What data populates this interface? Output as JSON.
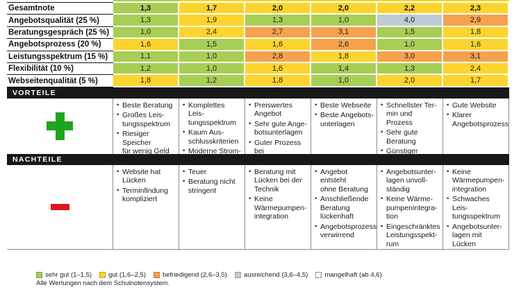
{
  "chart_data": {
    "type": "table",
    "title": "",
    "notes": "Anbieter-Vergleichstabelle mit Schulnoten; 6 Anbieter-Spalten ohne sichtbare Spaltennamen",
    "rows": [
      {
        "label": "Gesamtnote",
        "bold": true,
        "values": [
          "1,3",
          "1,7",
          "2,0",
          "2,0",
          "2,2",
          "2,3"
        ]
      },
      {
        "label": "Angebotsqualität (25 %)",
        "bold": false,
        "values": [
          "1,3",
          "1,9",
          "1,3",
          "1,0",
          "4,0",
          "2,9"
        ]
      },
      {
        "label": "Beratungsgespräch (25 %)",
        "bold": false,
        "values": [
          "1,0",
          "2,4",
          "2,7",
          "3,1",
          "1,5",
          "1,8"
        ]
      },
      {
        "label": "Angebotsprozess (20 %)",
        "bold": false,
        "values": [
          "1,6",
          "1,5",
          "1,6",
          "2,6",
          "1,0",
          "1,6"
        ]
      },
      {
        "label": "Leistungsspektrum (15 %)",
        "bold": false,
        "values": [
          "1,1",
          "1,0",
          "2,8",
          "1,8",
          "3,0",
          "3,1"
        ]
      },
      {
        "label": "Flexibilität (10 %)",
        "bold": false,
        "values": [
          "1,2",
          "1,0",
          "1,6",
          "1,4",
          "1,3",
          "2,4"
        ]
      },
      {
        "label": "Webseitenqualität (5 %)",
        "bold": false,
        "values": [
          "1,8",
          "1,2",
          "1,8",
          "1,0",
          "2,0",
          "1,7"
        ]
      }
    ],
    "sections": {
      "vorteile": {
        "title": "VORTEILE",
        "sign": "plus",
        "columns": [
          [
            "Beste Beratung",
            "Großes Leis-\ntungsspektrum",
            "Riesiger Speicher\nfür wenig Geld"
          ],
          [
            "Komplettes Leis-\ntungsspektrum",
            "Kaum Aus-\nschlusskriterien",
            "Moderne Strom-\nvermarktung"
          ],
          [
            "Preiswertes\nAngebot",
            "Sehr gute Ange-\nbotsunterlagen",
            "Guter Prozess bei\nder Beratung"
          ],
          [
            "Beste Webseite",
            "Beste Angebots-\nunterlagen"
          ],
          [
            "Schnellster Ter-\nmin und Prozess",
            "Sehr gute\nBeratung",
            "Günstiger\nAnlagenpreis"
          ],
          [
            "Gute Website",
            "Klarer\nAngebotsprozess"
          ]
        ]
      },
      "nachteile": {
        "title": "NACHTEILE",
        "sign": "minus",
        "columns": [
          [
            "Website hat\nLücken",
            "Terminfindung\nkompliziert"
          ],
          [
            "Teuer",
            "Beratung nicht\nstringent"
          ],
          [
            "Beratung mit\nLücken bei der\nTechnik",
            "Keine\nWärmepumpen-\nintegration"
          ],
          [
            "Angebot entsteht\nohne Beratung",
            "Anschließende\nBeratung\nlückenhaft",
            "Angebotsprozess\nverwirrend"
          ],
          [
            "Angebotsunter-\nlagen unvoll-\nständig",
            "Keine Wärme-\npumpenintegra-\ntion",
            "Eingeschränktes\nLeistungsspekt-\nrum"
          ],
          [
            "Keine\nWärmepumpen-\nintegration",
            "Schwaches Leis-\ntungsspektrum",
            "Angebotsunter-\nlagen mit Lücken"
          ]
        ]
      }
    },
    "legend": {
      "items": [
        {
          "label": "sehr gut (1–1,5)",
          "color": "#a7ce55",
          "swatch_border": "#7ba03a",
          "max": 1.5
        },
        {
          "label": "gut (1,6–2,5)",
          "color": "#fbd42e",
          "swatch_border": "#c4a41f",
          "max": 2.5
        },
        {
          "label": "befriedigend (2,6–3,5)",
          "color": "#f6a14d",
          "swatch_border": "#c37c37",
          "max": 3.5
        },
        {
          "label": "ausreichend (3,6–4,5)",
          "color": "#c0cad2",
          "swatch_border": "#93a0aa",
          "max": 4.5
        },
        {
          "label": "mangelhaft (ab 4,6)",
          "color": "#ffffff",
          "swatch_border": "#8d8d8d",
          "max": 99
        }
      ],
      "footnote": "Alle Wertungen nach dem Schulnotensystem."
    }
  },
  "signs": {
    "plus_color": "#1fa41f",
    "minus_color": "#e2131e"
  },
  "colors": {
    "section_bar_bg": "#181818",
    "section_bar_text": "#ffffff",
    "grid_line": "#8c8c8c",
    "label_line": "#141414"
  }
}
